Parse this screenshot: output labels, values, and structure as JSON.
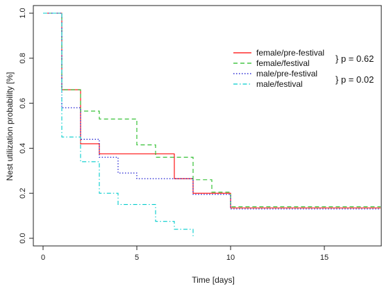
{
  "chart_data": {
    "type": "line",
    "step": true,
    "title": "",
    "xlabel": "Time [days]",
    "ylabel": "Nest utilization probability [%]",
    "xlim": [
      0,
      18
    ],
    "ylim": [
      -0.05,
      1.02
    ],
    "xticks": [
      0,
      5,
      10,
      15
    ],
    "yticks": [
      0.0,
      0.2,
      0.4,
      0.6,
      0.8,
      1.0
    ],
    "xtick_labels": [
      "0",
      "5",
      "10",
      "15"
    ],
    "ytick_labels": [
      "0.0",
      "0.2",
      "0.4",
      "0.6",
      "0.8",
      "1.0"
    ],
    "grid": false,
    "legend_position": "top-right",
    "series": [
      {
        "name": "female/pre-festival",
        "color": "#ff0000",
        "dash": "solid",
        "points": [
          [
            0,
            1.0
          ],
          [
            1,
            0.66
          ],
          [
            2,
            0.42
          ],
          [
            3,
            0.375
          ],
          [
            7,
            0.265
          ],
          [
            8,
            0.2
          ],
          [
            10,
            0.135
          ],
          [
            18,
            0.135
          ]
        ]
      },
      {
        "name": "female/festival",
        "color": "#22bb22",
        "dash": "dashed",
        "points": [
          [
            0,
            1.0
          ],
          [
            1,
            0.66
          ],
          [
            2,
            0.565
          ],
          [
            3,
            0.53
          ],
          [
            5,
            0.415
          ],
          [
            6,
            0.36
          ],
          [
            8,
            0.26
          ],
          [
            9,
            0.205
          ],
          [
            10,
            0.14
          ],
          [
            18,
            0.14
          ]
        ]
      },
      {
        "name": "male/pre-festival",
        "color": "#0000cc",
        "dash": "dotted",
        "points": [
          [
            0,
            1.0
          ],
          [
            1,
            0.58
          ],
          [
            2,
            0.44
          ],
          [
            3,
            0.36
          ],
          [
            4,
            0.29
          ],
          [
            5,
            0.265
          ],
          [
            7,
            0.265
          ],
          [
            8,
            0.195
          ],
          [
            10,
            0.13
          ],
          [
            18,
            0.13
          ]
        ]
      },
      {
        "name": "male/festival",
        "color": "#00cccc",
        "dash": "dashdot",
        "points": [
          [
            0,
            1.0
          ],
          [
            1,
            0.45
          ],
          [
            2,
            0.34
          ],
          [
            3,
            0.2
          ],
          [
            4,
            0.15
          ],
          [
            6,
            0.075
          ],
          [
            7,
            0.04
          ],
          [
            8,
            0.0
          ]
        ]
      }
    ],
    "annotations": [
      {
        "text": "} p = 0.62",
        "pair": [
          "female/pre-festival",
          "female/festival"
        ]
      },
      {
        "text": "} p = 0.02",
        "pair": [
          "male/pre-festival",
          "male/festival"
        ]
      }
    ]
  }
}
